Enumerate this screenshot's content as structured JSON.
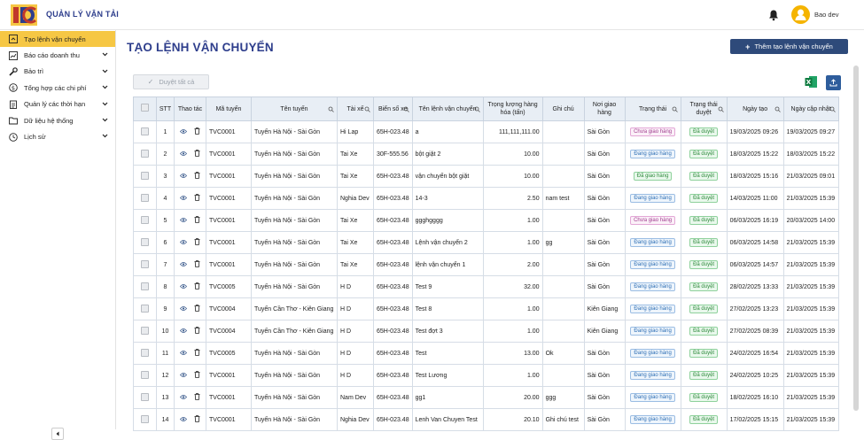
{
  "app": {
    "title": "QUẢN LÝ VẬN TẢI",
    "user": "Bao dev"
  },
  "colors": {
    "primary": "#2e3e8c",
    "accent": "#f6c744",
    "button": "#2e4a7a"
  },
  "sidebar": {
    "items": [
      {
        "label": "Tạo lệnh vận chuyển",
        "icon": "truck-icon",
        "active": true,
        "expandable": false
      },
      {
        "label": "Báo cáo doanh thu",
        "icon": "chart-icon",
        "active": false,
        "expandable": true
      },
      {
        "label": "Bảo trì",
        "icon": "wrench-icon",
        "active": false,
        "expandable": true
      },
      {
        "label": "Tổng hợp các chi phí",
        "icon": "dollar-icon",
        "active": false,
        "expandable": true
      },
      {
        "label": "Quản lý các thời hạn",
        "icon": "clipboard-icon",
        "active": false,
        "expandable": true
      },
      {
        "label": "Dữ liệu hệ thống",
        "icon": "folder-icon",
        "active": false,
        "expandable": true
      },
      {
        "label": "Lịch sử",
        "icon": "clock-icon",
        "active": false,
        "expandable": true
      }
    ]
  },
  "page": {
    "title": "TẠO LỆNH VẬN CHUYỂN",
    "add_label": "Thêm tạo lệnh vận chuyển",
    "approve_all_label": "Duyệt tất cả"
  },
  "table": {
    "headers": [
      "STT",
      "Thao tác",
      "Mã tuyến",
      "Tên tuyến",
      "Tài xế",
      "Biển số xe",
      "Tên lệnh vận chuyển",
      "Trọng lượng hàng hóa (tấn)",
      "Ghi chú",
      "Nơi giao hàng",
      "Trạng thái",
      "Trạng thái duyệt",
      "Ngày tạo",
      "Ngày cập nhật"
    ],
    "rows": [
      {
        "stt": "1",
        "code": "TVC0001",
        "route": "Tuyến Hà Nội - Sài Gòn",
        "driver": "Hi Lap",
        "plate": "65H-023.48",
        "name": "a",
        "weight": "111,111,111.00",
        "note": "",
        "dest": "Sài Gòn",
        "status": "Chưa giao hàng",
        "status_kind": "pink",
        "approval": "Đã duyệt",
        "created": "19/03/2025 09:26",
        "updated": "19/03/2025 09:27"
      },
      {
        "stt": "2",
        "code": "TVC0001",
        "route": "Tuyến Hà Nội - Sài Gòn",
        "driver": "Tai Xe",
        "plate": "30F-555.56",
        "name": "bột giặt 2",
        "weight": "10.00",
        "note": "",
        "dest": "Sài Gòn",
        "status": "Đang giao hàng",
        "status_kind": "blue",
        "approval": "Đã duyệt",
        "created": "18/03/2025 15:22",
        "updated": "18/03/2025 15:22"
      },
      {
        "stt": "3",
        "code": "TVC0001",
        "route": "Tuyến Hà Nội - Sài Gòn",
        "driver": "Tai Xe",
        "plate": "65H-023.48",
        "name": "vận chuyển bột giặt",
        "weight": "10.00",
        "note": "",
        "dest": "Sài Gòn",
        "status": "Đã giao hàng",
        "status_kind": "green",
        "approval": "Đã duyệt",
        "created": "18/03/2025 15:16",
        "updated": "21/03/2025 09:01"
      },
      {
        "stt": "4",
        "code": "TVC0001",
        "route": "Tuyến Hà Nội - Sài Gòn",
        "driver": "Nghia Dev",
        "plate": "65H-023.48",
        "name": "14-3",
        "weight": "2.50",
        "note": "nam test",
        "dest": "Sài Gòn",
        "status": "Đang giao hàng",
        "status_kind": "blue",
        "approval": "Đã duyệt",
        "created": "14/03/2025 11:00",
        "updated": "21/03/2025 15:39"
      },
      {
        "stt": "5",
        "code": "TVC0001",
        "route": "Tuyến Hà Nội - Sài Gòn",
        "driver": "Tai Xe",
        "plate": "65H-023.48",
        "name": "ggghgggg",
        "weight": "1.00",
        "note": "",
        "dest": "Sài Gòn",
        "status": "Chưa giao hàng",
        "status_kind": "pink",
        "approval": "Đã duyệt",
        "created": "06/03/2025 16:19",
        "updated": "20/03/2025 14:00"
      },
      {
        "stt": "6",
        "code": "TVC0001",
        "route": "Tuyến Hà Nội - Sài Gòn",
        "driver": "Tai Xe",
        "plate": "65H-023.48",
        "name": "Lệnh vận chuyển 2",
        "weight": "1.00",
        "note": "gg",
        "dest": "Sài Gòn",
        "status": "Đang giao hàng",
        "status_kind": "blue",
        "approval": "Đã duyệt",
        "created": "06/03/2025 14:58",
        "updated": "21/03/2025 15:39"
      },
      {
        "stt": "7",
        "code": "TVC0001",
        "route": "Tuyến Hà Nội - Sài Gòn",
        "driver": "Tai Xe",
        "plate": "65H-023.48",
        "name": "lệnh vận chuyển 1",
        "weight": "2.00",
        "note": "",
        "dest": "Sài Gòn",
        "status": "Đang giao hàng",
        "status_kind": "blue",
        "approval": "Đã duyệt",
        "created": "06/03/2025 14:57",
        "updated": "21/03/2025 15:39"
      },
      {
        "stt": "8",
        "code": "TVC0005",
        "route": "Tuyến Hà Nội - Sài Gòn",
        "driver": "H D",
        "plate": "65H-023.48",
        "name": "Test 9",
        "weight": "32.00",
        "note": "",
        "dest": "Sài Gòn",
        "status": "Đang giao hàng",
        "status_kind": "blue",
        "approval": "Đã duyệt",
        "created": "28/02/2025 13:33",
        "updated": "21/03/2025 15:39"
      },
      {
        "stt": "9",
        "code": "TVC0004",
        "route": "Tuyến Cần Thơ - Kiên Giang",
        "driver": "H D",
        "plate": "65H-023.48",
        "name": "Test 8",
        "weight": "1.00",
        "note": "",
        "dest": "Kiên Giang",
        "status": "Đang giao hàng",
        "status_kind": "blue",
        "approval": "Đã duyệt",
        "created": "27/02/2025 13:23",
        "updated": "21/03/2025 15:39"
      },
      {
        "stt": "10",
        "code": "TVC0004",
        "route": "Tuyến Cần Thơ - Kiên Giang",
        "driver": "H D",
        "plate": "65H-023.48",
        "name": "Test đợt 3",
        "weight": "1.00",
        "note": "",
        "dest": "Kiên Giang",
        "status": "Đang giao hàng",
        "status_kind": "blue",
        "approval": "Đã duyệt",
        "created": "27/02/2025 08:39",
        "updated": "21/03/2025 15:39"
      },
      {
        "stt": "11",
        "code": "TVC0005",
        "route": "Tuyến Hà Nội - Sài Gòn",
        "driver": "H D",
        "plate": "65H-023.48",
        "name": "Test",
        "weight": "13.00",
        "note": "Ok",
        "dest": "Sài Gòn",
        "status": "Đang giao hàng",
        "status_kind": "blue",
        "approval": "Đã duyệt",
        "created": "24/02/2025 16:54",
        "updated": "21/03/2025 15:39"
      },
      {
        "stt": "12",
        "code": "TVC0001",
        "route": "Tuyến Hà Nội - Sài Gòn",
        "driver": "H D",
        "plate": "65H-023.48",
        "name": "Test Lương",
        "weight": "1.00",
        "note": "",
        "dest": "Sài Gòn",
        "status": "Đang giao hàng",
        "status_kind": "blue",
        "approval": "Đã duyệt",
        "created": "24/02/2025 10:25",
        "updated": "21/03/2025 15:39"
      },
      {
        "stt": "13",
        "code": "TVC0001",
        "route": "Tuyến Hà Nội - Sài Gòn",
        "driver": "Nam Dev",
        "plate": "65H-023.48",
        "name": "gg1",
        "weight": "20.00",
        "note": "ggg",
        "dest": "Sài Gòn",
        "status": "Đang giao hàng",
        "status_kind": "blue",
        "approval": "Đã duyệt",
        "created": "18/02/2025 16:10",
        "updated": "21/03/2025 15:39"
      },
      {
        "stt": "14",
        "code": "TVC0001",
        "route": "Tuyến Hà Nội - Sài Gòn",
        "driver": "Nghia Dev",
        "plate": "65H-023.48",
        "name": "Lenh Van Chuyen Test",
        "weight": "20.10",
        "note": "Ghi chú test",
        "dest": "Sài Gòn",
        "status": "Đang giao hàng",
        "status_kind": "blue",
        "approval": "Đã duyệt",
        "created": "17/02/2025 15:15",
        "updated": "21/03/2025 15:39"
      }
    ]
  }
}
